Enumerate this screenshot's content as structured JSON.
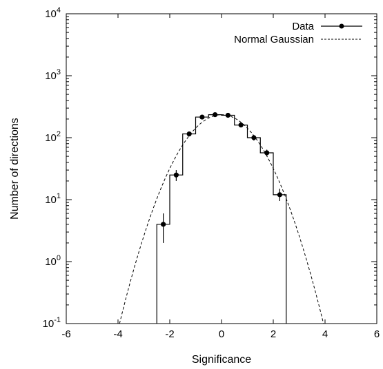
{
  "chart_data": {
    "type": "step-histogram",
    "xlabel": "Significance",
    "ylabel": "Number of directions",
    "xlim": [
      -6,
      6
    ],
    "ylim": [
      0.1,
      10000
    ],
    "yscale": "log",
    "x_ticks": [
      -6,
      -4,
      -2,
      0,
      2,
      4,
      6
    ],
    "x_tick_labels": [
      "-6",
      "-4",
      "-2",
      "0",
      "2",
      "4",
      "6"
    ],
    "y_ticks": [
      {
        "value": 0.1,
        "base": "10",
        "exp": "-1"
      },
      {
        "value": 1,
        "base": "10",
        "exp": "0"
      },
      {
        "value": 10,
        "base": "10",
        "exp": "1"
      },
      {
        "value": 100,
        "base": "10",
        "exp": "2"
      },
      {
        "value": 1000,
        "base": "10",
        "exp": "3"
      },
      {
        "value": 10000,
        "base": "10",
        "exp": "4"
      }
    ],
    "legend_position": "top-right",
    "series": [
      {
        "name": "Data",
        "style": "points-with-errorbars-and-step-histogram",
        "color": "#000000",
        "bin_edges": [
          -2.5,
          -2.0,
          -1.5,
          -1.0,
          -0.5,
          0.0,
          0.5,
          1.0,
          1.5,
          2.0,
          2.5
        ],
        "x": [
          -2.25,
          -1.75,
          -1.25,
          -0.75,
          -0.25,
          0.25,
          0.75,
          1.25,
          1.75,
          2.25
        ],
        "y": [
          4,
          25,
          115,
          215,
          235,
          230,
          160,
          100,
          57,
          12
        ],
        "y_err_low": [
          2.0,
          20,
          105,
          200,
          220,
          215,
          148,
          90,
          50,
          9.5
        ],
        "y_err_high": [
          6.0,
          30,
          125,
          230,
          250,
          245,
          172,
          110,
          64,
          15
        ]
      },
      {
        "name": "Normal Gaussian",
        "style": "dashed-line",
        "color": "#000000",
        "function": "N * exp(-x^2/2)",
        "peak": 235
      }
    ]
  }
}
